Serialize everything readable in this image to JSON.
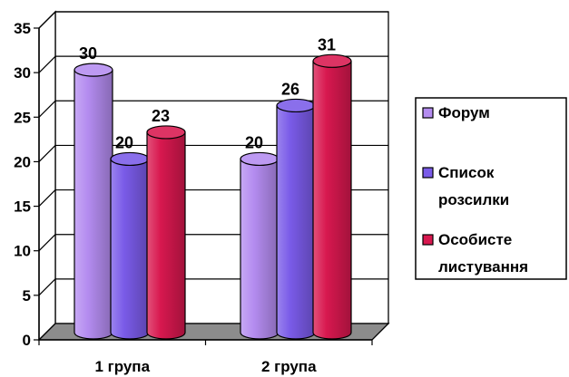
{
  "chart_data": {
    "type": "bar",
    "style": "3d-cylinder",
    "title": "",
    "xlabel": "",
    "ylabel": "",
    "categories": [
      "1 група",
      "2 група"
    ],
    "ylim": [
      0,
      35
    ],
    "yticks": [
      0,
      5,
      10,
      15,
      20,
      25,
      30,
      35
    ],
    "grid": true,
    "legend": "right",
    "series": [
      {
        "name": "Форум",
        "values": [
          30,
          20
        ],
        "color": "#b48cf0"
      },
      {
        "name": "Список розсилки",
        "values": [
          20,
          26
        ],
        "color": "#7a5be8"
      },
      {
        "name": "Особисте листування",
        "values": [
          23,
          31
        ],
        "color": "#d8184f"
      }
    ]
  },
  "legend_items": [
    {
      "lines": [
        "Форум"
      ]
    },
    {
      "lines": [
        "Список",
        "розсилки"
      ]
    },
    {
      "lines": [
        "Особисте",
        "листування"
      ]
    }
  ]
}
